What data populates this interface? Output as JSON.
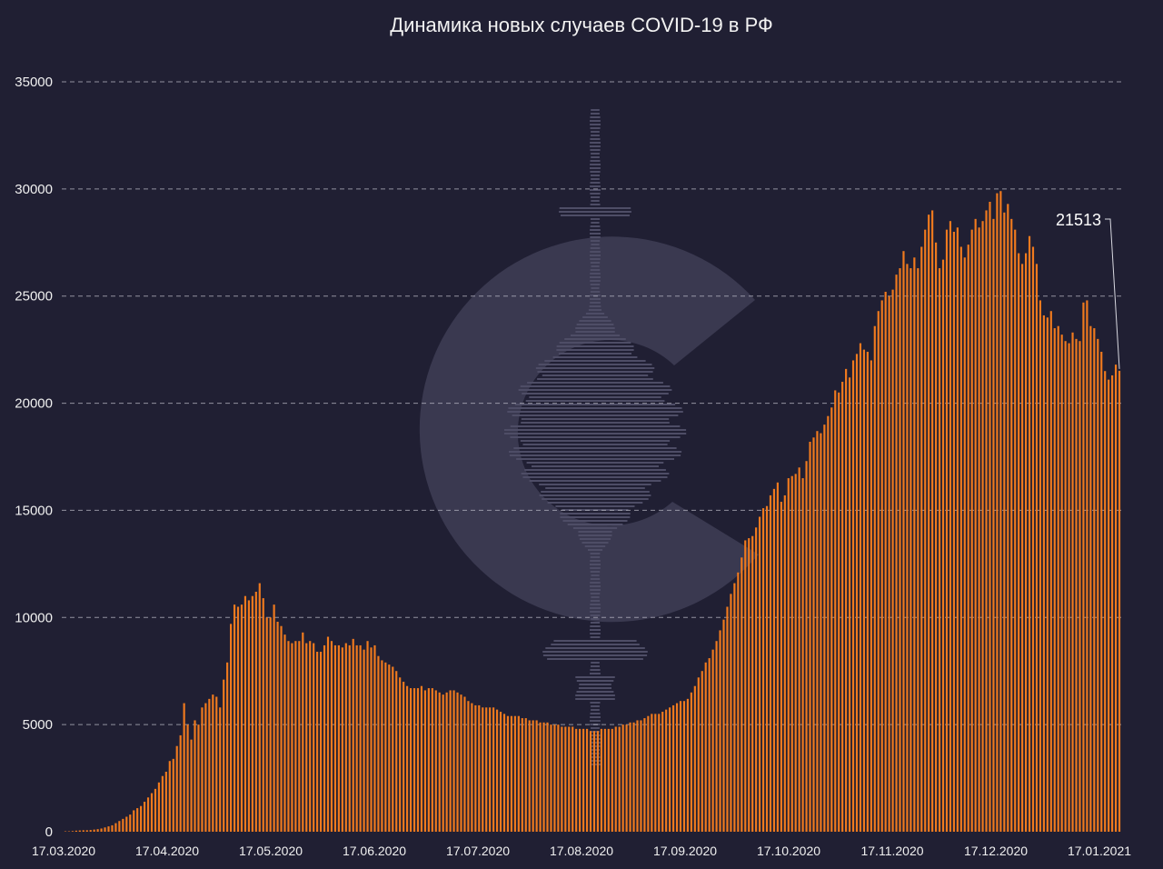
{
  "chart_data": {
    "type": "bar",
    "title": "Динамика новых случаев COVID-19 в РФ",
    "xlabel": "",
    "ylabel": "",
    "ylim": [
      0,
      35000
    ],
    "yticks": [
      0,
      5000,
      10000,
      15000,
      20000,
      25000,
      30000,
      35000
    ],
    "x_range": [
      "17.03.2020",
      "21.01.2021"
    ],
    "xtick_labels": [
      "17.03.2020",
      "17.04.2020",
      "17.05.2020",
      "17.06.2020",
      "17.07.2020",
      "17.08.2020",
      "17.09.2020",
      "17.10.2020",
      "17.11.2020",
      "17.12.2020",
      "17.01.2021"
    ],
    "grid": "horizontal dashed",
    "bar_color": "#f07a1e",
    "annotation": {
      "label": "21513",
      "value": 21513,
      "target": "last bar"
    },
    "values": [
      20,
      20,
      30,
      50,
      60,
      70,
      70,
      80,
      100,
      120,
      150,
      200,
      250,
      300,
      400,
      500,
      600,
      700,
      800,
      1000,
      1100,
      1200,
      1400,
      1600,
      1800,
      2000,
      2300,
      2600,
      2800,
      3300,
      3400,
      4000,
      4500,
      6000,
      5000,
      4300,
      5200,
      5000,
      5800,
      6000,
      6200,
      6400,
      6300,
      5800,
      7100,
      7900,
      9700,
      10600,
      10500,
      10600,
      11000,
      10800,
      11000,
      11200,
      11600,
      10900,
      10000,
      10000,
      10600,
      9800,
      9600,
      9200,
      8900,
      8800,
      8900,
      8900,
      9300,
      8800,
      8900,
      8800,
      8400,
      8400,
      8700,
      9100,
      8900,
      8700,
      8700,
      8600,
      8800,
      8700,
      9000,
      8700,
      8700,
      8500,
      8900,
      8600,
      8700,
      8200,
      8000,
      7900,
      7800,
      7700,
      7500,
      7200,
      7000,
      6800,
      6700,
      6700,
      6700,
      6800,
      6600,
      6700,
      6700,
      6600,
      6500,
      6400,
      6500,
      6600,
      6600,
      6500,
      6400,
      6300,
      6100,
      6000,
      5900,
      5900,
      5800,
      5800,
      5800,
      5800,
      5700,
      5600,
      5500,
      5400,
      5400,
      5400,
      5400,
      5300,
      5300,
      5200,
      5200,
      5200,
      5100,
      5100,
      5100,
      5000,
      5000,
      5000,
      4900,
      4900,
      4900,
      4900,
      4800,
      4800,
      4800,
      4800,
      4700,
      4700,
      4700,
      4800,
      4800,
      4800,
      4800,
      4900,
      4900,
      5000,
      5000,
      5100,
      5100,
      5200,
      5200,
      5300,
      5400,
      5500,
      5500,
      5500,
      5600,
      5700,
      5800,
      5900,
      6000,
      6100,
      6100,
      6200,
      6500,
      6800,
      7200,
      7500,
      7900,
      8100,
      8500,
      8900,
      9400,
      9900,
      10500,
      11100,
      11600,
      12100,
      12800,
      13600,
      13700,
      13800,
      14200,
      14700,
      15100,
      15200,
      15700,
      16000,
      16300,
      15400,
      15700,
      16500,
      16600,
      16700,
      17000,
      16500,
      17300,
      18200,
      18400,
      18700,
      18600,
      19000,
      19400,
      19800,
      20600,
      20500,
      21000,
      21600,
      21200,
      22000,
      22300,
      22800,
      22500,
      22400,
      22000,
      23600,
      24300,
      24800,
      25200,
      25000,
      25300,
      26000,
      26300,
      27100,
      26500,
      26300,
      26800,
      26300,
      27300,
      28100,
      28800,
      29000,
      27500,
      26300,
      26700,
      28100,
      28500,
      28000,
      28200,
      27300,
      26800,
      27400,
      28100,
      28600,
      28200,
      28500,
      29000,
      29400,
      28600,
      29800,
      29900,
      28900,
      29300,
      28600,
      28100,
      27000,
      26500,
      27000,
      27800,
      27300,
      26500,
      24800,
      24100,
      24000,
      24300,
      23500,
      23600,
      23200,
      22900,
      22800,
      23300,
      23000,
      22900,
      24700,
      24800,
      23600,
      23500,
      23000,
      22400,
      21500,
      21100,
      21300,
      21800,
      21513
    ]
  }
}
